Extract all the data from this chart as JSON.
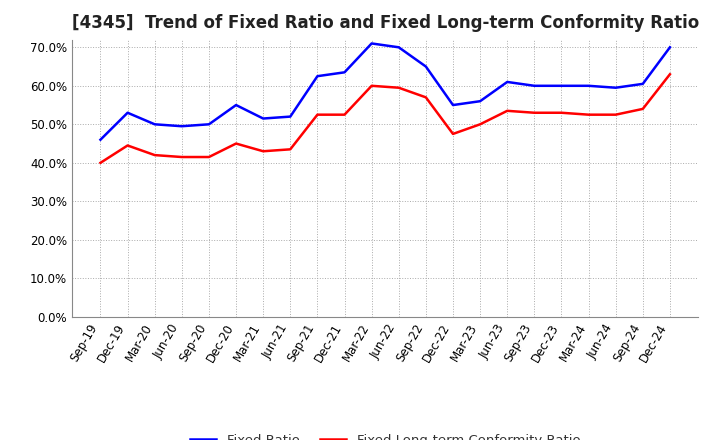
{
  "title": "[4345]  Trend of Fixed Ratio and Fixed Long-term Conformity Ratio",
  "x_labels": [
    "Sep-19",
    "Dec-19",
    "Mar-20",
    "Jun-20",
    "Sep-20",
    "Dec-20",
    "Mar-21",
    "Jun-21",
    "Sep-21",
    "Dec-21",
    "Mar-22",
    "Jun-22",
    "Sep-22",
    "Dec-22",
    "Mar-23",
    "Jun-23",
    "Sep-23",
    "Dec-23",
    "Mar-24",
    "Jun-24",
    "Sep-24",
    "Dec-24"
  ],
  "fixed_ratio": [
    46.0,
    53.0,
    50.0,
    49.5,
    50.0,
    55.0,
    51.5,
    52.0,
    62.5,
    63.5,
    71.0,
    70.0,
    65.0,
    55.0,
    56.0,
    61.0,
    60.0,
    60.0,
    60.0,
    59.5,
    60.5,
    70.0
  ],
  "fixed_lt_ratio": [
    40.0,
    44.5,
    42.0,
    41.5,
    41.5,
    45.0,
    43.0,
    43.5,
    52.5,
    52.5,
    60.0,
    59.5,
    57.0,
    47.5,
    50.0,
    53.5,
    53.0,
    53.0,
    52.5,
    52.5,
    54.0,
    63.0
  ],
  "fixed_ratio_color": "#0000FF",
  "fixed_lt_ratio_color": "#FF0000",
  "ylim_min": 0,
  "ylim_max": 70,
  "yticks": [
    0,
    10,
    20,
    30,
    40,
    50,
    60,
    70
  ],
  "background_color": "#FFFFFF",
  "plot_bg_color": "#FFFFFF",
  "grid_color": "#AAAAAA",
  "legend_fixed": "Fixed Ratio",
  "legend_fixed_lt": "Fixed Long-term Conformity Ratio",
  "title_fontsize": 12,
  "tick_fontsize": 8.5,
  "legend_fontsize": 9.5,
  "line_width": 1.8
}
